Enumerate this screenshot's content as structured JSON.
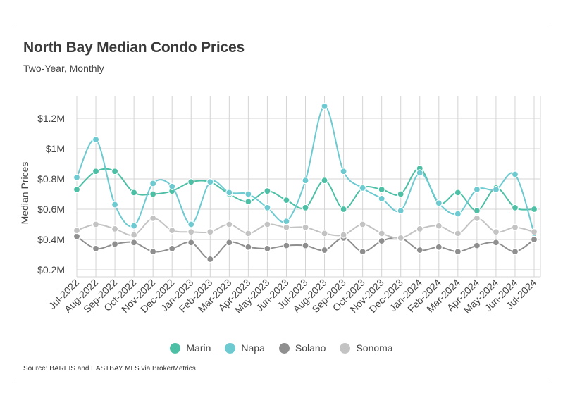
{
  "title": "North Bay Median Condo Prices",
  "subtitle": "Two-Year, Monthly",
  "source": "Source:  BAREIS and EASTBAY MLS via BrokerMetrics",
  "chart_data": {
    "type": "line",
    "ylabel": "Median Prices",
    "ylim": [
      0.2,
      1.3
    ],
    "yticks": [
      0.2,
      0.4,
      0.6,
      0.8,
      1.0,
      1.2
    ],
    "ytick_labels": [
      "$0.2M",
      "$0.4M",
      "$0.6M",
      "$0.8M",
      "$1M",
      "$1.2M"
    ],
    "grid": true,
    "legend_position": "bottom",
    "categories": [
      "Jul-2022",
      "Aug-2022",
      "Sep-2022",
      "Oct-2022",
      "Nov-2022",
      "Dec-2022",
      "Jan-2023",
      "Feb-2023",
      "Mar-2023",
      "Apr-2023",
      "May-2023",
      "Jun-2023",
      "Jul-2023",
      "Aug-2023",
      "Sep-2023",
      "Oct-2023",
      "Nov-2023",
      "Dec-2023",
      "Jan-2024",
      "Feb-2024",
      "Mar-2024",
      "Apr-2024",
      "May-2024",
      "Jun-2024",
      "Jul-2024"
    ],
    "series": [
      {
        "name": "Marin",
        "color": "#4dbfa5",
        "values": [
          0.73,
          0.85,
          0.85,
          0.71,
          0.7,
          0.72,
          0.78,
          0.78,
          0.7,
          0.65,
          0.72,
          0.66,
          0.61,
          0.79,
          0.6,
          0.74,
          0.73,
          0.7,
          0.87,
          0.64,
          0.71,
          0.59,
          0.74,
          0.61,
          0.6
        ]
      },
      {
        "name": "Napa",
        "color": "#6ccad0",
        "values": [
          0.81,
          1.06,
          0.63,
          0.49,
          0.77,
          0.75,
          0.5,
          0.78,
          0.71,
          0.7,
          0.61,
          0.52,
          0.79,
          1.28,
          0.85,
          0.74,
          0.67,
          0.59,
          0.84,
          0.64,
          0.57,
          0.73,
          0.73,
          0.83,
          0.44
        ]
      },
      {
        "name": "Solano",
        "color": "#8f8f8f",
        "values": [
          0.42,
          0.34,
          0.37,
          0.38,
          0.32,
          0.34,
          0.38,
          0.27,
          0.38,
          0.35,
          0.34,
          0.36,
          0.36,
          0.33,
          0.41,
          0.32,
          0.39,
          0.41,
          0.33,
          0.35,
          0.32,
          0.36,
          0.38,
          0.32,
          0.4
        ]
      },
      {
        "name": "Sonoma",
        "color": "#c3c3c3",
        "values": [
          0.46,
          0.5,
          0.47,
          0.43,
          0.54,
          0.46,
          0.45,
          0.45,
          0.5,
          0.44,
          0.5,
          0.48,
          0.48,
          0.44,
          0.43,
          0.5,
          0.44,
          0.41,
          0.47,
          0.49,
          0.44,
          0.54,
          0.45,
          0.48,
          0.45
        ]
      }
    ]
  }
}
